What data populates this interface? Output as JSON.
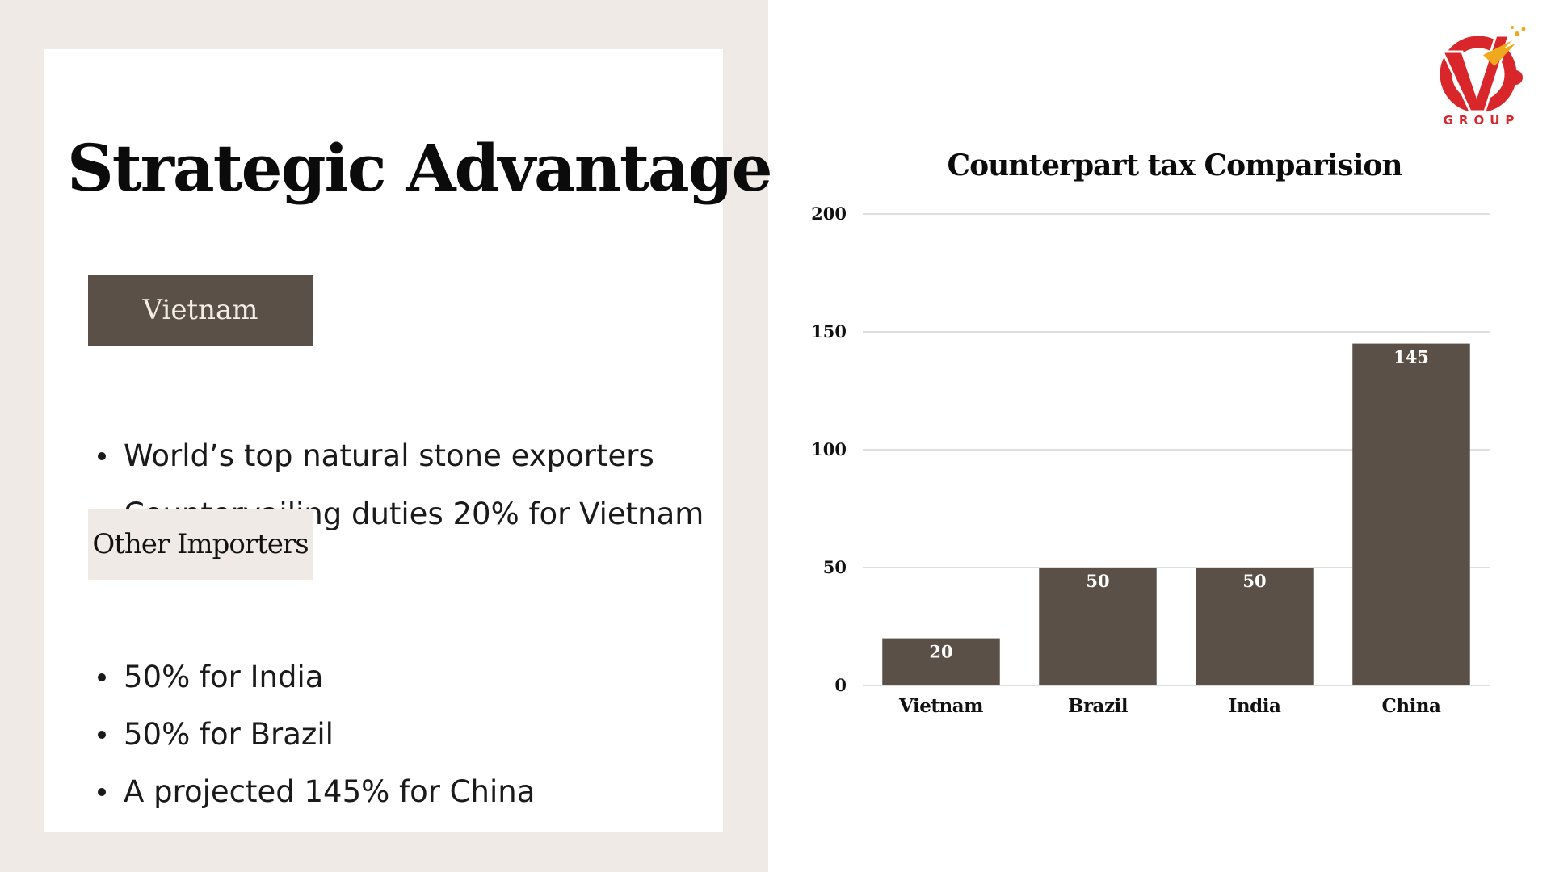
{
  "slide": {
    "title": "Strategic Advantage",
    "section1_label": "Vietnam",
    "section1_bullets": [
      "World’s top natural stone exporters",
      "Countervailing duties 20% for Vietnam"
    ],
    "section2_label": "Other Importers",
    "section2_bullets": [
      "50% for India",
      "50% for Brazil",
      "A projected 145% for China"
    ]
  },
  "logo": {
    "icon": "vi-group-logo",
    "wordmark": "GROUP",
    "colors": {
      "red": "#d9262b",
      "gold": "#f0a91c"
    }
  },
  "colors": {
    "left_panel": "#efeae6",
    "bar": "#5b5048",
    "label_dark_text": "#f3ede7"
  },
  "chart_data": {
    "type": "bar",
    "title": "Counterpart tax Comparision",
    "categories": [
      "Vietnam",
      "Brazil",
      "India",
      "China"
    ],
    "values": [
      20,
      50,
      50,
      145
    ],
    "data_labels": [
      "20",
      "50",
      "50",
      "145"
    ],
    "ylim": [
      0,
      200
    ],
    "yticks": [
      0,
      50,
      100,
      150,
      200
    ],
    "ytick_labels": [
      "0",
      "50",
      "100",
      "150",
      "200"
    ],
    "xlabel": "",
    "ylabel": "",
    "grid": true,
    "legend": "none",
    "bar_color": "#5b5048"
  }
}
